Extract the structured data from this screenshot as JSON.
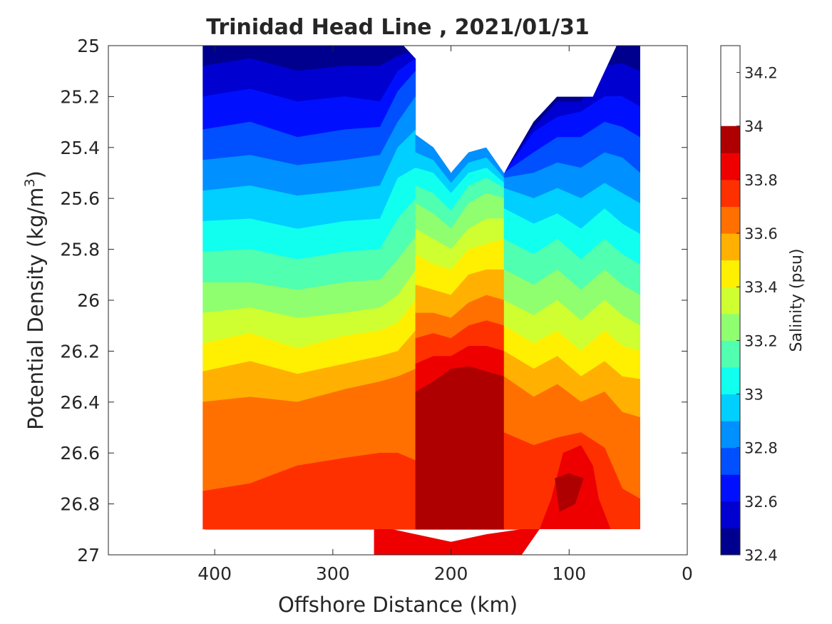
{
  "chart_data": {
    "type": "heatmap",
    "subtype": "filled-contour",
    "title": "Trinidad Head Line , 2021/01/31",
    "xlabel": "Offshore Distance (km)",
    "ylabel_main": "Potential Density (kg/m",
    "ylabel_sup": "3",
    "ylabel_close": ")",
    "xlim": [
      490,
      0
    ],
    "x_reversed": true,
    "ylim": [
      25,
      27
    ],
    "y_reversed": true,
    "x_ticks": [
      "400",
      "300",
      "200",
      "100",
      "0"
    ],
    "x_tick_values": [
      400,
      300,
      200,
      100,
      0
    ],
    "y_ticks": [
      "25",
      "25.2",
      "25.4",
      "25.6",
      "25.8",
      "26",
      "26.2",
      "26.4",
      "26.6",
      "26.8",
      "27"
    ],
    "y_tick_values": [
      25,
      25.2,
      25.4,
      25.6,
      25.8,
      26,
      26.2,
      26.4,
      26.6,
      26.8,
      27
    ],
    "colorbar": {
      "label": "Salinity (psu)",
      "range": [
        32.4,
        34.3
      ],
      "step": 0.1,
      "tick_labels": [
        "32.4",
        "32.6",
        "32.8",
        "33",
        "33.2",
        "33.4",
        "33.6",
        "33.8",
        "34",
        "34.2"
      ],
      "tick_values": [
        32.4,
        32.6,
        32.8,
        33.0,
        33.2,
        33.4,
        33.6,
        33.8,
        34.0,
        34.2
      ],
      "colors": [
        "#00008f",
        "#0000d0",
        "#0010ff",
        "#0050ff",
        "#0090ff",
        "#00cfff",
        "#10ffef",
        "#50ffaf",
        "#90ff6f",
        "#cfff30",
        "#ffef00",
        "#ffb000",
        "#ff7000",
        "#ff3000",
        "#ef0000",
        "#ae0000"
      ]
    },
    "sections": [
      {
        "name": "offshore (top bound)",
        "x": [
          410,
          370,
          330,
          290,
          260,
          245,
          230
        ],
        "levels_y": [
          [
            25.0,
            25.0,
            25.0,
            25.0,
            25.0,
            25.0,
            25.0
          ],
          [
            25.08,
            25.05,
            25.1,
            25.08,
            25.08,
            25.04,
            25.02
          ],
          [
            25.2,
            25.17,
            25.22,
            25.2,
            25.22,
            25.1,
            25.05
          ],
          [
            25.33,
            25.3,
            25.36,
            25.33,
            25.32,
            25.18,
            25.1
          ],
          [
            25.45,
            25.43,
            25.47,
            25.45,
            25.43,
            25.3,
            25.2
          ],
          [
            25.57,
            25.55,
            25.59,
            25.57,
            25.55,
            25.4,
            25.33
          ],
          [
            25.69,
            25.68,
            25.72,
            25.69,
            25.68,
            25.52,
            25.48
          ],
          [
            25.81,
            25.8,
            25.84,
            25.81,
            25.8,
            25.68,
            25.6
          ],
          [
            25.93,
            25.93,
            25.96,
            25.93,
            25.92,
            25.84,
            25.75
          ],
          [
            26.05,
            26.03,
            26.07,
            26.05,
            26.03,
            25.98,
            25.88
          ],
          [
            26.17,
            26.13,
            26.19,
            26.14,
            26.12,
            26.09,
            26.0
          ],
          [
            26.28,
            26.24,
            26.29,
            26.25,
            26.22,
            26.2,
            26.12
          ],
          [
            26.4,
            26.38,
            26.4,
            26.35,
            26.32,
            26.3,
            26.27
          ],
          [
            26.75,
            26.72,
            26.65,
            26.62,
            26.6,
            26.6,
            26.63
          ],
          [
            26.9,
            26.9,
            26.9,
            26.9,
            26.9,
            26.9,
            26.9
          ]
        ]
      },
      {
        "name": "middle (top bound)",
        "x": [
          230,
          215,
          200,
          185,
          170,
          155
        ],
        "levels_y": [
          [
            25.35,
            25.4,
            25.5,
            25.42,
            25.4,
            25.5
          ],
          [
            25.42,
            25.45,
            25.54,
            25.46,
            25.44,
            25.52
          ],
          [
            25.48,
            25.5,
            25.58,
            25.5,
            25.48,
            25.54
          ],
          [
            25.55,
            25.58,
            25.65,
            25.55,
            25.52,
            25.56
          ],
          [
            25.62,
            25.66,
            25.72,
            25.62,
            25.58,
            25.6
          ],
          [
            25.72,
            25.76,
            25.8,
            25.72,
            25.68,
            25.68
          ],
          [
            25.82,
            25.86,
            25.88,
            25.8,
            25.78,
            25.76
          ],
          [
            25.94,
            25.96,
            25.98,
            25.9,
            25.88,
            25.88
          ],
          [
            26.05,
            26.05,
            26.07,
            26.01,
            25.98,
            26.0
          ],
          [
            26.15,
            26.13,
            26.15,
            26.1,
            26.08,
            26.1
          ],
          [
            26.25,
            26.22,
            26.22,
            26.18,
            26.18,
            26.2
          ],
          [
            26.36,
            26.32,
            26.27,
            26.26,
            26.28,
            26.3
          ],
          [
            26.65,
            26.4,
            26.38,
            26.45,
            26.45,
            26.52
          ],
          [
            26.9,
            26.9,
            26.9,
            26.9,
            26.9,
            26.9
          ]
        ],
        "level_offset": 4
      },
      {
        "name": "inshore (top bound)",
        "x": [
          155,
          130,
          110,
          90,
          70,
          55,
          40
        ],
        "levels_y": [
          [
            25.5,
            25.3,
            25.2,
            25.2,
            25.0,
            25.0,
            25.0
          ],
          [
            25.5,
            25.32,
            25.22,
            25.22,
            25.08,
            25.07,
            25.1
          ],
          [
            25.5,
            25.34,
            25.28,
            25.26,
            25.2,
            25.2,
            25.24
          ],
          [
            25.5,
            25.42,
            25.36,
            25.36,
            25.3,
            25.32,
            25.36
          ],
          [
            25.52,
            25.5,
            25.46,
            25.48,
            25.42,
            25.44,
            25.5
          ],
          [
            25.56,
            25.6,
            25.56,
            25.6,
            25.54,
            25.58,
            25.62
          ],
          [
            25.64,
            25.7,
            25.66,
            25.72,
            25.64,
            25.7,
            25.74
          ],
          [
            25.76,
            25.82,
            25.76,
            25.84,
            25.76,
            25.82,
            25.86
          ],
          [
            25.88,
            25.94,
            25.88,
            25.96,
            25.88,
            25.94,
            25.98
          ],
          [
            26.0,
            26.06,
            26.0,
            26.08,
            26.0,
            26.06,
            26.1
          ],
          [
            26.1,
            26.17,
            26.12,
            26.2,
            26.12,
            26.18,
            26.2
          ],
          [
            26.2,
            26.27,
            26.22,
            26.3,
            26.24,
            26.3,
            26.31
          ],
          [
            26.3,
            26.38,
            26.33,
            26.4,
            26.36,
            26.44,
            26.46
          ],
          [
            26.52,
            26.57,
            26.54,
            26.52,
            26.58,
            26.74,
            26.78
          ],
          [
            26.9,
            26.9,
            26.9,
            26.9,
            26.9,
            26.9,
            26.9
          ]
        ]
      }
    ],
    "deep_region_x": [
      265,
      250,
      230,
      200,
      170,
      140,
      125
    ],
    "deep_region_top": [
      26.9,
      26.9,
      26.92,
      26.95,
      26.92,
      26.9,
      26.9
    ],
    "max_patch": {
      "x": [
        112,
        100,
        88,
        95,
        108
      ],
      "y": [
        26.7,
        26.68,
        26.7,
        26.8,
        26.83
      ]
    },
    "top_boundary": {
      "x": [
        410,
        240,
        220,
        200,
        190,
        170,
        155,
        120,
        80,
        60,
        40
      ],
      "y": [
        25.0,
        25.0,
        25.1,
        25.5,
        25.4,
        25.4,
        25.5,
        25.2,
        25.2,
        25.0,
        25.0
      ]
    },
    "bottom_boundary": {
      "x": [
        40,
        125,
        140,
        265,
        410
      ],
      "y": [
        26.9,
        26.9,
        27.0,
        27.0,
        26.9
      ]
    }
  }
}
